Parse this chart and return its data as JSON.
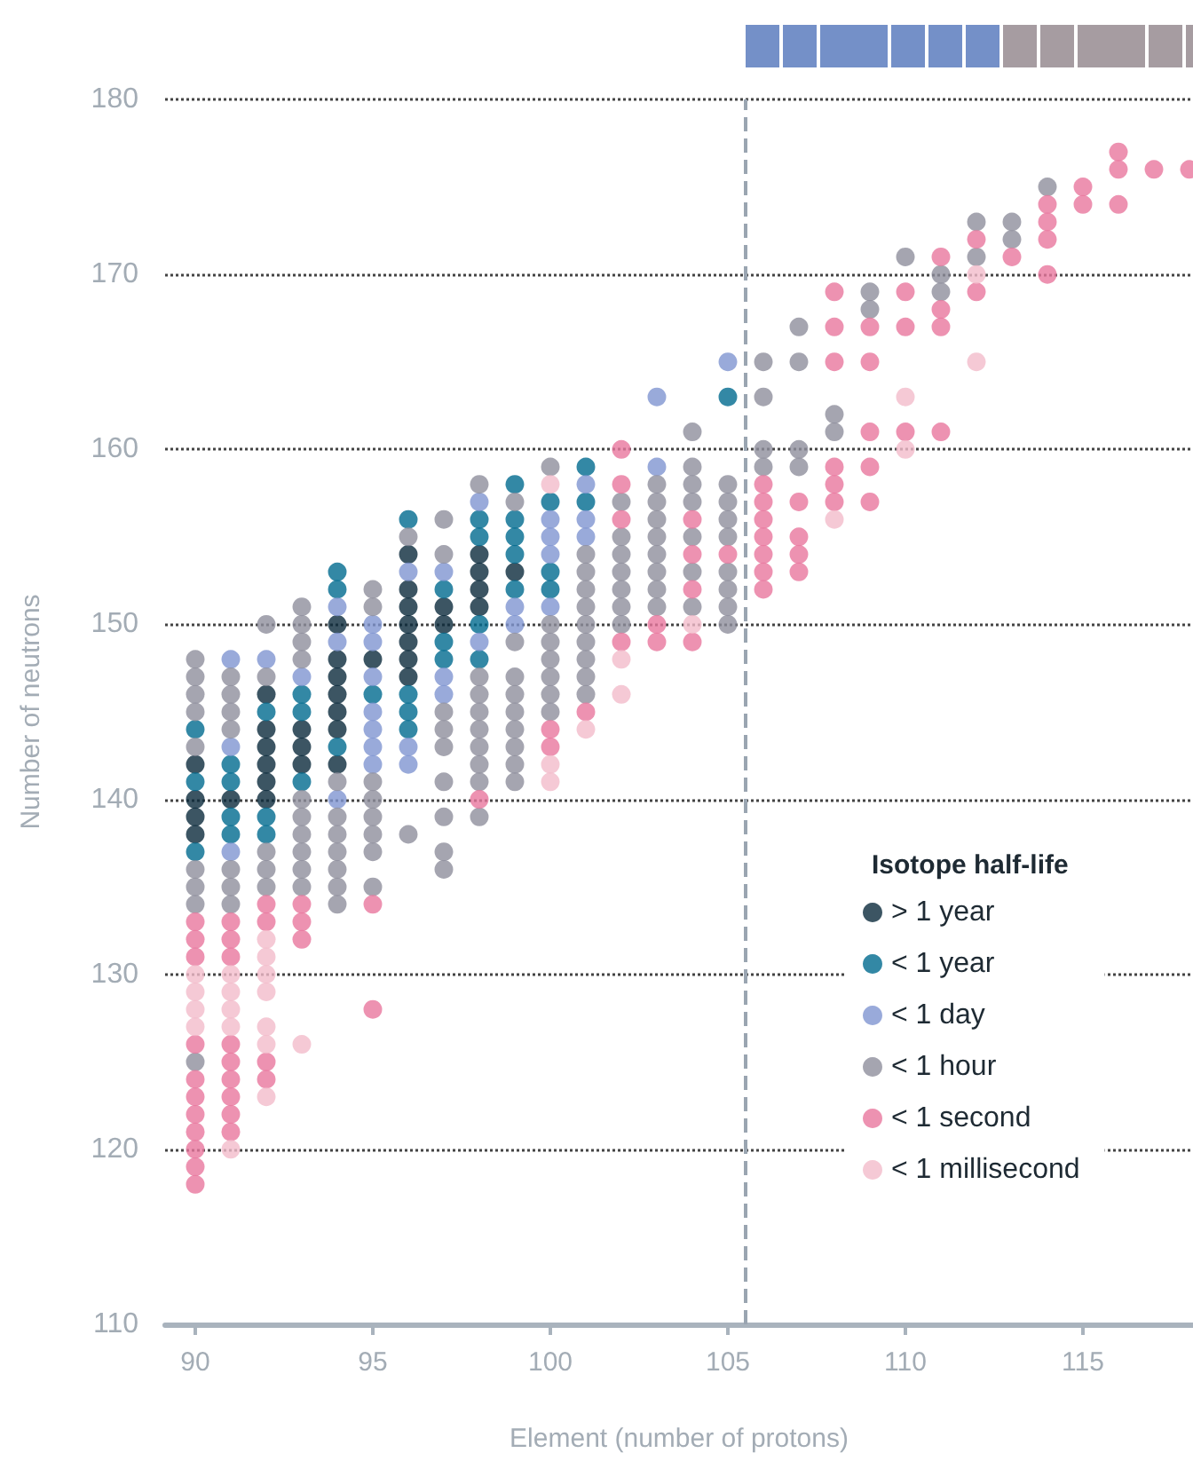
{
  "chart_data": {
    "type": "scatter",
    "xlabel": "Element (number of protons)",
    "ylabel": "Number of neutrons",
    "legend_title": "Isotope half-life",
    "xlim": [
      89.15,
      118.1
    ],
    "ylim": [
      110,
      180
    ],
    "xticks": [
      90,
      95,
      100,
      105,
      110,
      115
    ],
    "yticks": [
      110,
      120,
      130,
      140,
      150,
      160,
      170,
      180
    ],
    "grid": "y",
    "legend": "bottom right",
    "marker": "circle",
    "ref_lines": [
      {
        "axis": "x",
        "value": 105.5,
        "color": "#9aa5b1",
        "line_style": "dashed"
      }
    ],
    "series": [
      {
        "name": "> 1 year",
        "color": "#0b2a3c",
        "x": [
          90,
          90,
          90,
          90,
          91,
          92,
          92,
          92,
          92,
          92,
          92,
          93,
          93,
          93,
          94,
          94,
          94,
          94,
          94,
          94,
          94,
          95,
          96,
          96,
          96,
          96,
          96,
          96,
          96,
          97,
          97,
          98,
          98,
          98,
          98,
          99
        ],
        "values": [
          142,
          140,
          139,
          138,
          140,
          146,
          144,
          143,
          142,
          141,
          140,
          144,
          143,
          142,
          150,
          148,
          147,
          146,
          145,
          144,
          142,
          148,
          154,
          152,
          151,
          150,
          149,
          148,
          147,
          151,
          150,
          154,
          153,
          152,
          151,
          153
        ]
      },
      {
        "name": "< 1 year",
        "color": "#006a8e",
        "x": [
          90,
          90,
          90,
          91,
          91,
          91,
          91,
          92,
          92,
          92,
          93,
          93,
          93,
          94,
          94,
          94,
          95,
          96,
          96,
          96,
          96,
          97,
          97,
          97,
          98,
          98,
          98,
          98,
          99,
          99,
          99,
          99,
          99,
          100,
          100,
          100,
          101,
          101,
          105
        ],
        "values": [
          144,
          141,
          137,
          142,
          141,
          139,
          138,
          145,
          139,
          138,
          146,
          145,
          141,
          153,
          152,
          143,
          146,
          156,
          146,
          145,
          144,
          152,
          149,
          148,
          156,
          155,
          150,
          148,
          158,
          156,
          155,
          154,
          152,
          157,
          153,
          152,
          159,
          157,
          163
        ]
      },
      {
        "name": "< 1 day",
        "color": "#7f95d1",
        "x": [
          91,
          91,
          91,
          92,
          93,
          94,
          94,
          94,
          95,
          95,
          95,
          95,
          95,
          95,
          95,
          96,
          96,
          96,
          97,
          97,
          97,
          98,
          98,
          99,
          99,
          100,
          100,
          100,
          100,
          101,
          101,
          101,
          103,
          103,
          105
        ],
        "values": [
          148,
          143,
          137,
          148,
          147,
          151,
          149,
          140,
          150,
          149,
          147,
          145,
          144,
          143,
          142,
          153,
          143,
          142,
          153,
          147,
          146,
          157,
          149,
          151,
          150,
          156,
          155,
          154,
          151,
          158,
          156,
          155,
          163,
          159,
          165
        ]
      },
      {
        "name": "< 1 hour",
        "color": "#8f8e9c",
        "x": [
          90,
          90,
          90,
          90,
          90,
          90,
          90,
          90,
          90,
          91,
          91,
          91,
          91,
          91,
          91,
          91,
          92,
          92,
          92,
          92,
          92,
          93,
          93,
          93,
          93,
          93,
          93,
          93,
          93,
          93,
          93,
          94,
          94,
          94,
          94,
          94,
          94,
          94,
          95,
          95,
          95,
          95,
          95,
          95,
          95,
          95,
          96,
          96,
          97,
          97,
          97,
          97,
          97,
          97,
          97,
          97,
          97,
          98,
          98,
          98,
          98,
          98,
          98,
          98,
          98,
          98,
          99,
          99,
          99,
          99,
          99,
          99,
          99,
          99,
          99,
          100,
          100,
          100,
          100,
          100,
          100,
          100,
          101,
          101,
          101,
          101,
          101,
          101,
          101,
          101,
          101,
          102,
          102,
          102,
          102,
          102,
          102,
          102,
          103,
          103,
          103,
          103,
          103,
          103,
          103,
          103,
          104,
          104,
          104,
          104,
          104,
          104,
          104,
          105,
          105,
          105,
          105,
          105,
          105,
          105,
          105,
          106,
          106,
          106,
          106,
          107,
          107,
          107,
          107,
          108,
          108,
          109,
          109,
          110,
          111,
          111,
          112,
          112,
          113,
          113,
          114
        ],
        "values": [
          148,
          147,
          146,
          145,
          143,
          136,
          135,
          134,
          125,
          147,
          146,
          145,
          144,
          136,
          135,
          134,
          150,
          147,
          137,
          136,
          135,
          151,
          150,
          149,
          148,
          140,
          139,
          138,
          137,
          136,
          135,
          141,
          139,
          138,
          137,
          136,
          135,
          134,
          152,
          151,
          141,
          140,
          139,
          138,
          137,
          135,
          155,
          138,
          156,
          154,
          145,
          144,
          143,
          141,
          139,
          137,
          136,
          158,
          147,
          146,
          145,
          144,
          143,
          142,
          141,
          139,
          157,
          149,
          147,
          146,
          145,
          144,
          143,
          142,
          141,
          159,
          150,
          149,
          148,
          147,
          146,
          145,
          154,
          153,
          152,
          151,
          150,
          149,
          148,
          147,
          146,
          157,
          155,
          154,
          153,
          152,
          151,
          150,
          158,
          157,
          156,
          155,
          154,
          153,
          152,
          151,
          161,
          159,
          158,
          157,
          155,
          153,
          151,
          158,
          157,
          156,
          155,
          153,
          152,
          151,
          150,
          165,
          163,
          160,
          159,
          167,
          165,
          160,
          159,
          162,
          161,
          169,
          168,
          171,
          170,
          169,
          173,
          171,
          173,
          172,
          175
        ]
      },
      {
        "name": "< 1 second",
        "color": "#e8779e",
        "x": [
          90,
          90,
          90,
          90,
          90,
          90,
          90,
          90,
          90,
          90,
          90,
          91,
          91,
          91,
          91,
          91,
          91,
          91,
          91,
          91,
          92,
          92,
          92,
          92,
          93,
          93,
          93,
          95,
          95,
          98,
          100,
          100,
          101,
          102,
          102,
          102,
          102,
          103,
          103,
          104,
          104,
          104,
          104,
          105,
          106,
          106,
          106,
          106,
          106,
          106,
          106,
          107,
          107,
          107,
          107,
          108,
          108,
          108,
          108,
          108,
          108,
          109,
          109,
          109,
          109,
          109,
          110,
          110,
          110,
          111,
          111,
          111,
          111,
          112,
          112,
          113,
          114,
          114,
          114,
          114,
          115,
          115,
          116,
          116,
          116,
          117,
          118
        ],
        "values": [
          133,
          132,
          131,
          126,
          124,
          123,
          122,
          121,
          120,
          119,
          118,
          133,
          132,
          131,
          126,
          125,
          124,
          123,
          122,
          121,
          134,
          133,
          125,
          124,
          134,
          133,
          132,
          134,
          128,
          140,
          144,
          143,
          145,
          160,
          158,
          156,
          149,
          150,
          149,
          156,
          154,
          152,
          149,
          154,
          158,
          157,
          156,
          155,
          154,
          153,
          152,
          157,
          155,
          154,
          153,
          169,
          167,
          165,
          159,
          158,
          157,
          167,
          165,
          161,
          159,
          157,
          169,
          167,
          161,
          171,
          168,
          167,
          161,
          172,
          169,
          171,
          174,
          173,
          172,
          170,
          175,
          174,
          177,
          176,
          174,
          176,
          176
        ]
      },
      {
        "name": "< 1 millisecond",
        "color": "#f2bccb",
        "x": [
          90,
          90,
          90,
          90,
          91,
          91,
          91,
          91,
          91,
          92,
          92,
          92,
          92,
          92,
          92,
          92,
          93,
          100,
          100,
          100,
          101,
          102,
          102,
          104,
          108,
          110,
          110,
          112,
          112
        ],
        "values": [
          130,
          129,
          128,
          127,
          130,
          129,
          128,
          127,
          120,
          132,
          131,
          130,
          129,
          127,
          126,
          123,
          126,
          158,
          142,
          141,
          144,
          148,
          146,
          150,
          156,
          163,
          160,
          170,
          165
        ]
      }
    ]
  }
}
